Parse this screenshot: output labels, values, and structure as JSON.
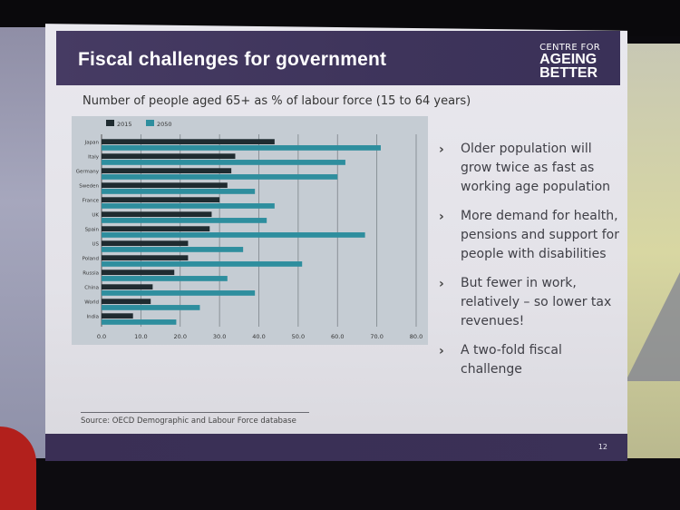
{
  "slide": {
    "title": "Fiscal challenges for government",
    "logo": {
      "line1": "CENTRE FOR",
      "line2": "AGEING",
      "line3": "BETTER"
    },
    "page_number": "12",
    "source": "Source: OECD Demographic and Labour Force database",
    "bullets": [
      {
        "text": "Older population will grow twice as fast as working age population"
      },
      {
        "text": "More demand for health, pensions and support for people with disabilities"
      },
      {
        "text": "But fewer in work, relatively – so lower tax revenues!"
      },
      {
        "text": "A two-fold fiscal challenge"
      }
    ],
    "bullet_glyph": "›"
  },
  "chart_data": {
    "type": "bar",
    "orientation": "horizontal",
    "title": "Number of people aged 65+ as % of labour force (15 to 64 years)",
    "categories": [
      "Japan",
      "Italy",
      "Germany",
      "Sweden",
      "France",
      "UK",
      "Spain",
      "US",
      "Poland",
      "Russia",
      "China",
      "World",
      "India"
    ],
    "series": [
      {
        "name": "2015",
        "color": "#1f2b30",
        "values": [
          44,
          34,
          33,
          32,
          30,
          28,
          27.5,
          22,
          22,
          18.5,
          13,
          12.5,
          8
        ]
      },
      {
        "name": "2050",
        "color": "#2e8e9e",
        "values": [
          71,
          62,
          60,
          39,
          44,
          42,
          67,
          36,
          51,
          32,
          39,
          25,
          19
        ]
      }
    ],
    "x_ticks": [
      "0.0",
      "10.0",
      "20.0",
      "30.0",
      "40.0",
      "50.0",
      "60.0",
      "70.0",
      "80.0"
    ],
    "xlim": [
      0,
      80
    ],
    "legend": "top-left",
    "grid": true
  }
}
